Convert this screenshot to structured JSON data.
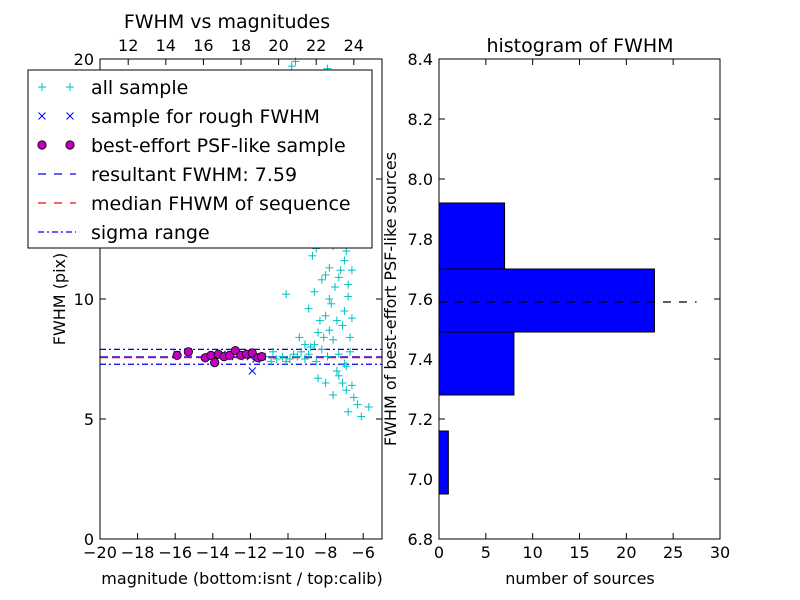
{
  "chart_data": [
    {
      "type": "scatter",
      "title": "FWHM vs magnitudes",
      "xlabel": "magnitude (bottom:isnt / top:calib)",
      "ylabel": "FWHM (pix)",
      "xlim": [
        -20,
        -5
      ],
      "ylim": [
        0,
        20
      ],
      "xticks": [
        "−20",
        "−18",
        "−16",
        "−14",
        "−12",
        "−10",
        "−8",
        "−6"
      ],
      "xtick_values": [
        -20,
        -18,
        -16,
        -14,
        -12,
        -10,
        -8,
        -6
      ],
      "yticks": [
        "0",
        "5",
        "10",
        "15",
        "20"
      ],
      "ytick_values": [
        0,
        5,
        10,
        15,
        20
      ],
      "top_xticks": [
        "12",
        "14",
        "16",
        "18",
        "20",
        "22",
        "24"
      ],
      "top_xtick_positions": [
        -18.5,
        -16.5,
        -14.5,
        -12.5,
        -10.5,
        -8.5,
        -6.5
      ],
      "legend_position": "top-left",
      "legend": [
        {
          "label": "all sample",
          "marker": "+",
          "color": "#00bfbf"
        },
        {
          "label": "sample for rough FWHM",
          "marker": "x",
          "color": "#0000ff"
        },
        {
          "label": "best-effort PSF-like sample",
          "marker": "o",
          "color": "#bf00bf"
        },
        {
          "label": "resultant FWHM: 7.59",
          "line": "dashed",
          "color": "#0000ff"
        },
        {
          "label": "median FHWM of sequence",
          "line": "dashed",
          "color": "#ff0000"
        },
        {
          "label": "sigma range",
          "line": "dashdot",
          "color": "#0000ff"
        }
      ],
      "series": [
        {
          "name": "all sample",
          "points": [
            [
              -11.5,
              7.5
            ],
            [
              -11.2,
              7.6
            ],
            [
              -10.9,
              7.4
            ],
            [
              -10.6,
              7.5
            ],
            [
              -10.3,
              7.6
            ],
            [
              -10.1,
              7.4
            ],
            [
              -9.9,
              7.5
            ],
            [
              -9.7,
              7.7
            ],
            [
              -9.5,
              7.6
            ],
            [
              -9.3,
              7.8
            ],
            [
              -9.1,
              7.5
            ],
            [
              -8.9,
              7.7
            ],
            [
              -8.8,
              8.0
            ],
            [
              -8.6,
              8.1
            ],
            [
              -8.5,
              7.4
            ],
            [
              -8.4,
              8.6
            ],
            [
              -8.3,
              9.1
            ],
            [
              -8.2,
              7.9
            ],
            [
              -8.1,
              8.4
            ],
            [
              -8.0,
              9.3
            ],
            [
              -7.9,
              7.6
            ],
            [
              -7.8,
              8.7
            ],
            [
              -7.7,
              9.8
            ],
            [
              -7.6,
              8.3
            ],
            [
              -7.5,
              10.5
            ],
            [
              -7.4,
              9.1
            ],
            [
              -7.3,
              7.7
            ],
            [
              -7.2,
              11.2
            ],
            [
              -7.1,
              8.9
            ],
            [
              -7.0,
              9.5
            ],
            [
              -6.9,
              7.2
            ],
            [
              -6.8,
              10.1
            ],
            [
              -6.7,
              8.4
            ],
            [
              -6.6,
              9.2
            ],
            [
              -8.7,
              11.8
            ],
            [
              -8.3,
              12.6
            ],
            [
              -8.0,
              13.5
            ],
            [
              -7.8,
              11.3
            ],
            [
              -7.6,
              12.2
            ],
            [
              -7.4,
              13.9
            ],
            [
              -7.2,
              12.8
            ],
            [
              -7.0,
              11.6
            ],
            [
              -7.9,
              14.6
            ],
            [
              -7.5,
              15.4
            ],
            [
              -7.1,
              14.2
            ],
            [
              -8.1,
              16.3
            ],
            [
              -7.7,
              17.1
            ],
            [
              -7.3,
              16.0
            ],
            [
              -9.5,
              16.6
            ],
            [
              -9.2,
              15.9
            ],
            [
              -8.9,
              17.3
            ],
            [
              -8.6,
              18.2
            ],
            [
              -8.3,
              19.1
            ],
            [
              -7.9,
              19.6
            ],
            [
              -9.8,
              19.7
            ],
            [
              -9.6,
              19.9
            ],
            [
              -7.6,
              18.5
            ],
            [
              -7.2,
              18.9
            ],
            [
              -10.1,
              10.2
            ],
            [
              -9.3,
              12.9
            ],
            [
              -9.0,
              13.7
            ],
            [
              -8.8,
              14.8
            ],
            [
              -7.3,
              6.8
            ],
            [
              -7.1,
              6.5
            ],
            [
              -6.9,
              6.2
            ],
            [
              -6.6,
              6.4
            ],
            [
              -6.5,
              5.9
            ],
            [
              -6.3,
              5.6
            ],
            [
              -7.6,
              6.0
            ],
            [
              -8.0,
              6.5
            ],
            [
              -8.4,
              6.7
            ],
            [
              -6.1,
              5.1
            ],
            [
              -5.7,
              5.5
            ],
            [
              -6.8,
              5.3
            ],
            [
              -9.1,
              8.1
            ],
            [
              -9.4,
              8.4
            ],
            [
              -10.8,
              7.8
            ],
            [
              -11.8,
              7.7
            ],
            [
              -12.4,
              7.6
            ],
            [
              -13.2,
              7.7
            ],
            [
              -14.0,
              7.5
            ],
            [
              -7.4,
              7.0
            ],
            [
              -7.0,
              7.3
            ],
            [
              -6.7,
              7.8
            ],
            [
              -8.9,
              9.6
            ],
            [
              -8.6,
              10.3
            ],
            [
              -8.2,
              10.8
            ],
            [
              -7.8,
              10.0
            ],
            [
              -6.8,
              10.6
            ],
            [
              -6.6,
              11.2
            ],
            [
              -8.5,
              12.1
            ],
            [
              -8.0,
              11.0
            ],
            [
              -7.3,
              10.9
            ],
            [
              -6.9,
              12.0
            ]
          ]
        },
        {
          "name": "sample for rough FWHM",
          "points": [
            [
              -15.9,
              7.7
            ],
            [
              -15.3,
              7.8
            ],
            [
              -14.2,
              7.6
            ],
            [
              -13.9,
              7.4
            ],
            [
              -13.5,
              7.7
            ],
            [
              -13.1,
              7.6
            ],
            [
              -12.8,
              7.8
            ],
            [
              -12.4,
              7.7
            ],
            [
              -12.0,
              7.6
            ],
            [
              -11.7,
              7.5
            ],
            [
              -11.4,
              7.6
            ],
            [
              -11.9,
              7.0
            ]
          ]
        },
        {
          "name": "best-effort PSF-like sample",
          "points": [
            [
              -15.9,
              7.65
            ],
            [
              -15.3,
              7.8
            ],
            [
              -14.4,
              7.55
            ],
            [
              -14.1,
              7.65
            ],
            [
              -13.9,
              7.35
            ],
            [
              -13.7,
              7.7
            ],
            [
              -13.4,
              7.6
            ],
            [
              -13.1,
              7.65
            ],
            [
              -12.8,
              7.85
            ],
            [
              -12.5,
              7.65
            ],
            [
              -12.2,
              7.7
            ],
            [
              -11.9,
              7.75
            ],
            [
              -11.6,
              7.55
            ],
            [
              -11.4,
              7.6
            ]
          ]
        }
      ],
      "hlines": [
        {
          "name": "resultant FWHM",
          "y": 7.59,
          "color": "#0000ff",
          "style": "dashed"
        },
        {
          "name": "median FHWM of sequence",
          "y": 7.56,
          "color": "#ff0000",
          "style": "dashed"
        },
        {
          "name": "sigma range upper",
          "y": 7.9,
          "color": "#0000ff",
          "style": "dashdot"
        },
        {
          "name": "sigma range lower",
          "y": 7.28,
          "color": "#0000ff",
          "style": "dashdot"
        }
      ]
    },
    {
      "type": "bar",
      "orientation": "horizontal",
      "title": "histogram of FWHM",
      "xlabel": "number of sources",
      "ylabel": "FWHM of best-effort PSF-like sources",
      "xlim": [
        0,
        30
      ],
      "ylim": [
        6.8,
        8.4
      ],
      "xticks": [
        "0",
        "5",
        "10",
        "15",
        "20",
        "25",
        "30"
      ],
      "xtick_values": [
        0,
        5,
        10,
        15,
        20,
        25,
        30
      ],
      "yticks": [
        "6.8",
        "7.0",
        "7.2",
        "7.4",
        "7.6",
        "7.8",
        "8.0",
        "8.2",
        "8.4"
      ],
      "ytick_values": [
        6.8,
        7.0,
        7.2,
        7.4,
        7.6,
        7.8,
        8.0,
        8.2,
        8.4
      ],
      "bars": [
        {
          "y0": 6.95,
          "y1": 7.16,
          "value": 1
        },
        {
          "y0": 7.28,
          "y1": 7.49,
          "value": 8
        },
        {
          "y0": 7.49,
          "y1": 7.7,
          "value": 23
        },
        {
          "y0": 7.7,
          "y1": 7.92,
          "value": 7
        }
      ],
      "bar_color": "#0000ff",
      "hline": {
        "y": 7.59,
        "x0": 0,
        "x1": 27.5,
        "style": "dashed",
        "color": "#000000"
      }
    }
  ]
}
